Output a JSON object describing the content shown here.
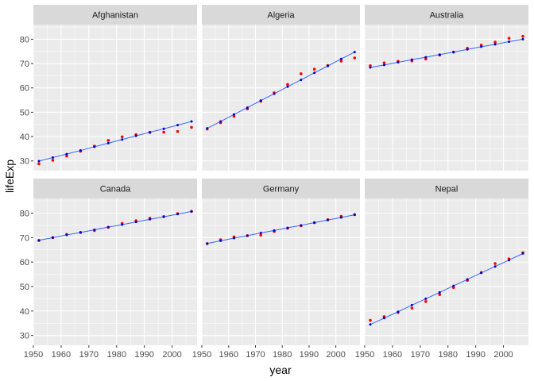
{
  "chart_data": {
    "type": "scatter",
    "layout": "facet_wrap 2 rows x 3 columns",
    "xlabel": "year",
    "ylabel": "lifeExp",
    "xlim": [
      1950,
      2009
    ],
    "ylim": [
      26,
      86
    ],
    "x_ticks": [
      1950,
      1960,
      1970,
      1980,
      1990,
      2000
    ],
    "x_tick_labels": [
      "1950",
      "1960",
      "1970",
      "1980",
      "1990",
      "2000"
    ],
    "y_ticks": [
      30,
      40,
      50,
      60,
      70,
      80
    ],
    "y_tick_labels": [
      "30",
      "40",
      "50",
      "60",
      "70",
      "80"
    ],
    "grid": true,
    "colors": {
      "observed": "#ff0000",
      "fitted_point": "#0000cc",
      "fitted_line": "#3366ff",
      "panel_bg": "#ebebeb",
      "strip_bg": "#d9d9d9",
      "grid": "#ffffff"
    },
    "panels": [
      {
        "name": "Afghanistan",
        "years": [
          1952,
          1957,
          1962,
          1967,
          1972,
          1977,
          1982,
          1987,
          1992,
          1997,
          2002,
          2007
        ],
        "observed": [
          28.8,
          30.3,
          32.0,
          34.0,
          36.1,
          38.4,
          39.9,
          40.8,
          41.7,
          41.8,
          42.1,
          43.8
        ],
        "fitted": [
          29.9,
          31.4,
          32.8,
          34.3,
          35.8,
          37.3,
          38.8,
          40.3,
          41.8,
          43.2,
          44.7,
          46.2
        ]
      },
      {
        "name": "Algeria",
        "years": [
          1952,
          1957,
          1962,
          1967,
          1972,
          1977,
          1982,
          1987,
          1992,
          1997,
          2002,
          2007
        ],
        "observed": [
          43.1,
          45.7,
          48.3,
          51.4,
          54.5,
          58.0,
          61.4,
          65.8,
          67.7,
          69.2,
          71.0,
          72.3
        ],
        "fitted": [
          43.4,
          46.2,
          49.1,
          51.9,
          54.8,
          57.6,
          60.5,
          63.3,
          66.2,
          69.0,
          71.9,
          74.7
        ]
      },
      {
        "name": "Australia",
        "years": [
          1952,
          1957,
          1962,
          1967,
          1972,
          1977,
          1982,
          1987,
          1992,
          1997,
          2002,
          2007
        ],
        "observed": [
          69.1,
          70.3,
          70.9,
          71.1,
          71.9,
          73.5,
          74.7,
          76.3,
          77.6,
          78.8,
          80.4,
          81.2
        ],
        "fitted": [
          68.4,
          69.4,
          70.5,
          71.6,
          72.6,
          73.7,
          74.7,
          75.8,
          76.9,
          77.9,
          79.0,
          80.0
        ]
      },
      {
        "name": "Canada",
        "years": [
          1952,
          1957,
          1962,
          1967,
          1972,
          1977,
          1982,
          1987,
          1992,
          1997,
          2002,
          2007
        ],
        "observed": [
          68.8,
          70.0,
          71.3,
          72.1,
          72.9,
          74.2,
          75.8,
          76.9,
          77.9,
          78.6,
          79.8,
          80.7
        ],
        "fitted": [
          68.9,
          70.0,
          71.1,
          72.1,
          73.2,
          74.3,
          75.3,
          76.4,
          77.5,
          78.5,
          79.6,
          80.7
        ]
      },
      {
        "name": "Germany",
        "years": [
          1952,
          1957,
          1962,
          1967,
          1972,
          1977,
          1982,
          1987,
          1992,
          1997,
          2002,
          2007
        ],
        "observed": [
          67.5,
          69.1,
          70.3,
          70.8,
          71.0,
          72.5,
          73.8,
          74.8,
          76.1,
          77.3,
          78.7,
          79.4
        ],
        "fitted": [
          67.6,
          68.7,
          69.8,
          70.8,
          71.9,
          72.9,
          74.0,
          75.0,
          76.1,
          77.2,
          78.2,
          79.3
        ]
      },
      {
        "name": "Nepal",
        "years": [
          1952,
          1957,
          1962,
          1967,
          1972,
          1977,
          1982,
          1987,
          1992,
          1997,
          2002,
          2007
        ],
        "observed": [
          36.2,
          37.7,
          39.4,
          41.2,
          43.9,
          46.7,
          49.6,
          52.5,
          55.7,
          59.4,
          61.3,
          63.8
        ],
        "fitted": [
          34.5,
          37.1,
          39.7,
          42.4,
          45.0,
          47.6,
          50.3,
          52.9,
          55.6,
          58.2,
          60.8,
          63.5
        ]
      }
    ]
  }
}
